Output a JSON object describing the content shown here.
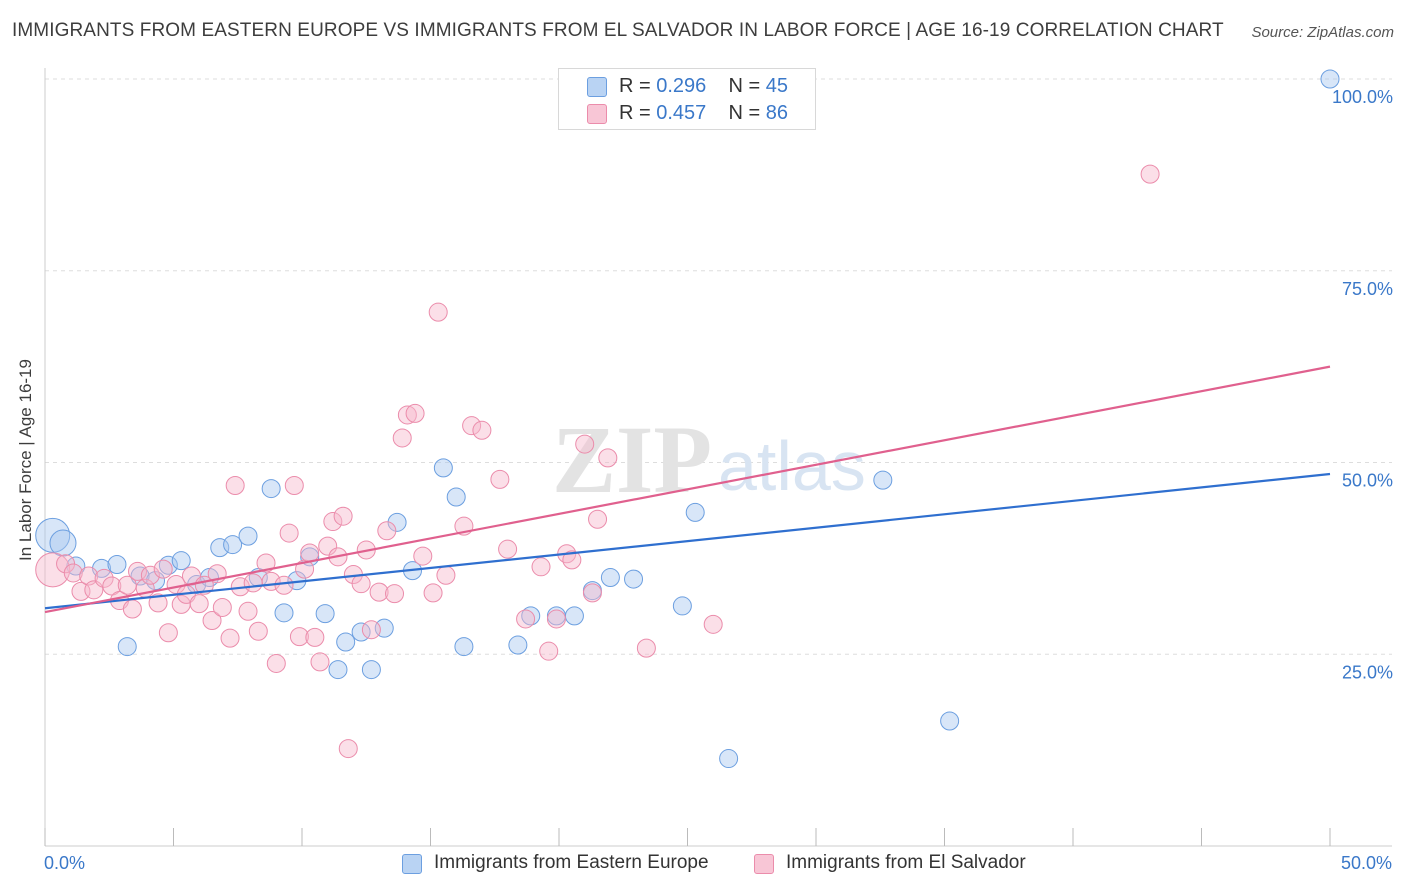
{
  "title": "IMMIGRANTS FROM EASTERN EUROPE VS IMMIGRANTS FROM EL SALVADOR IN LABOR FORCE | AGE 16-19 CORRELATION CHART",
  "source": "Source: ZipAtlas.com",
  "watermark": "ZIPatlas",
  "legend": {
    "r_label": "R =",
    "n_label": "N =",
    "series": [
      {
        "name": "Immigrants from Eastern Europe",
        "r": "0.296",
        "n": "45"
      },
      {
        "name": "Immigrants from El Salvador",
        "r": "0.457",
        "n": "86"
      }
    ]
  },
  "colors": {
    "blue_fill": "#a8c8f0",
    "blue_stroke": "#6c9fe0",
    "blue_line": "#2f6fcf",
    "pink_fill": "#f6b8cc",
    "pink_stroke": "#eb8cab",
    "pink_line": "#e0608e",
    "tick_text": "#3a78c9",
    "grid": "#dddddd"
  },
  "chart_data": {
    "type": "scatter",
    "title": "IMMIGRANTS FROM EASTERN EUROPE VS IMMIGRANTS FROM EL SALVADOR IN LABOR FORCE | AGE 16-19 CORRELATION CHART",
    "xlabel": "",
    "ylabel": "In Labor Force | Age 16-19",
    "xlim": [
      0,
      50
    ],
    "ylim": [
      0,
      100
    ],
    "x_tick_labels": [
      {
        "value": 0,
        "label": "0.0%"
      },
      {
        "value": 50,
        "label": "50.0%"
      }
    ],
    "y_tick_labels": [
      {
        "value": 25,
        "label": "25.0%"
      },
      {
        "value": 50,
        "label": "50.0%"
      },
      {
        "value": 75,
        "label": "75.0%"
      },
      {
        "value": 100,
        "label": "100.0%"
      }
    ],
    "series": [
      {
        "name": "Immigrants from Eastern Europe",
        "r": 0.296,
        "n": 45,
        "trend": {
          "x": [
            0,
            50
          ],
          "y": [
            31.0,
            48.5
          ]
        },
        "points": [
          {
            "x": 0.3,
            "y": 40.5,
            "big": 1
          },
          {
            "x": 0.7,
            "y": 39.5,
            "big": 0
          },
          {
            "x": 1.2,
            "y": 36.5
          },
          {
            "x": 2.2,
            "y": 36.2
          },
          {
            "x": 2.8,
            "y": 36.7
          },
          {
            "x": 3.2,
            "y": 26.0
          },
          {
            "x": 3.7,
            "y": 35.2
          },
          {
            "x": 4.3,
            "y": 34.6
          },
          {
            "x": 4.8,
            "y": 36.6
          },
          {
            "x": 5.3,
            "y": 37.2
          },
          {
            "x": 5.9,
            "y": 34.1
          },
          {
            "x": 6.4,
            "y": 35.0
          },
          {
            "x": 6.8,
            "y": 38.9
          },
          {
            "x": 7.3,
            "y": 39.3
          },
          {
            "x": 7.9,
            "y": 40.4
          },
          {
            "x": 8.3,
            "y": 35.0
          },
          {
            "x": 8.8,
            "y": 46.6
          },
          {
            "x": 9.3,
            "y": 30.4
          },
          {
            "x": 9.8,
            "y": 34.6
          },
          {
            "x": 10.3,
            "y": 37.7
          },
          {
            "x": 10.9,
            "y": 30.3
          },
          {
            "x": 11.4,
            "y": 23.0
          },
          {
            "x": 11.7,
            "y": 26.6
          },
          {
            "x": 12.3,
            "y": 27.9
          },
          {
            "x": 12.7,
            "y": 23.0
          },
          {
            "x": 13.2,
            "y": 28.4
          },
          {
            "x": 13.7,
            "y": 42.2
          },
          {
            "x": 14.3,
            "y": 35.9
          },
          {
            "x": 15.5,
            "y": 49.3
          },
          {
            "x": 16.0,
            "y": 45.5
          },
          {
            "x": 16.3,
            "y": 26.0
          },
          {
            "x": 18.4,
            "y": 26.2
          },
          {
            "x": 18.9,
            "y": 30.0
          },
          {
            "x": 19.9,
            "y": 30.0
          },
          {
            "x": 20.6,
            "y": 30.0
          },
          {
            "x": 21.3,
            "y": 33.3
          },
          {
            "x": 22.0,
            "y": 35.0
          },
          {
            "x": 22.9,
            "y": 34.8
          },
          {
            "x": 24.8,
            "y": 31.3
          },
          {
            "x": 25.3,
            "y": 43.5
          },
          {
            "x": 26.6,
            "y": 11.4
          },
          {
            "x": 32.6,
            "y": 47.7
          },
          {
            "x": 35.2,
            "y": 16.3
          },
          {
            "x": 50.0,
            "y": 100.0
          }
        ]
      },
      {
        "name": "Immigrants from El Salvador",
        "r": 0.457,
        "n": 86,
        "trend": {
          "x": [
            0,
            50
          ],
          "y": [
            30.5,
            62.5
          ]
        },
        "points": [
          {
            "x": 0.3,
            "y": 36.0,
            "big": 1
          },
          {
            "x": 0.8,
            "y": 36.8
          },
          {
            "x": 1.1,
            "y": 35.6
          },
          {
            "x": 1.4,
            "y": 33.2
          },
          {
            "x": 1.7,
            "y": 35.2
          },
          {
            "x": 1.9,
            "y": 33.4
          },
          {
            "x": 2.3,
            "y": 34.9
          },
          {
            "x": 2.6,
            "y": 33.9
          },
          {
            "x": 2.9,
            "y": 32.0
          },
          {
            "x": 3.2,
            "y": 34.0
          },
          {
            "x": 3.4,
            "y": 30.9
          },
          {
            "x": 3.6,
            "y": 35.8
          },
          {
            "x": 3.9,
            "y": 33.6
          },
          {
            "x": 4.1,
            "y": 35.3
          },
          {
            "x": 4.4,
            "y": 31.7
          },
          {
            "x": 4.6,
            "y": 36.1
          },
          {
            "x": 4.8,
            "y": 27.8
          },
          {
            "x": 5.1,
            "y": 34.1
          },
          {
            "x": 5.3,
            "y": 31.5
          },
          {
            "x": 5.5,
            "y": 32.8
          },
          {
            "x": 5.7,
            "y": 35.2
          },
          {
            "x": 6.0,
            "y": 31.6
          },
          {
            "x": 6.2,
            "y": 34.0
          },
          {
            "x": 6.5,
            "y": 29.4
          },
          {
            "x": 6.7,
            "y": 35.5
          },
          {
            "x": 6.9,
            "y": 31.1
          },
          {
            "x": 7.2,
            "y": 27.1
          },
          {
            "x": 7.4,
            "y": 47.0
          },
          {
            "x": 7.6,
            "y": 33.8
          },
          {
            "x": 7.9,
            "y": 30.6
          },
          {
            "x": 8.1,
            "y": 34.3
          },
          {
            "x": 8.3,
            "y": 28.0
          },
          {
            "x": 8.6,
            "y": 36.9
          },
          {
            "x": 8.8,
            "y": 34.5
          },
          {
            "x": 9.0,
            "y": 23.8
          },
          {
            "x": 9.3,
            "y": 34.0
          },
          {
            "x": 9.5,
            "y": 40.8
          },
          {
            "x": 9.7,
            "y": 47.0
          },
          {
            "x": 9.9,
            "y": 27.3
          },
          {
            "x": 10.1,
            "y": 36.1
          },
          {
            "x": 10.3,
            "y": 38.2
          },
          {
            "x": 10.5,
            "y": 27.2
          },
          {
            "x": 10.7,
            "y": 24.0
          },
          {
            "x": 11.0,
            "y": 39.1
          },
          {
            "x": 11.2,
            "y": 42.3
          },
          {
            "x": 11.4,
            "y": 37.7
          },
          {
            "x": 11.6,
            "y": 43.0
          },
          {
            "x": 11.8,
            "y": 12.7
          },
          {
            "x": 12.0,
            "y": 35.4
          },
          {
            "x": 12.3,
            "y": 34.2
          },
          {
            "x": 12.5,
            "y": 38.6
          },
          {
            "x": 12.7,
            "y": 28.2
          },
          {
            "x": 13.0,
            "y": 33.1
          },
          {
            "x": 13.3,
            "y": 41.1
          },
          {
            "x": 13.6,
            "y": 32.9
          },
          {
            "x": 13.9,
            "y": 53.2
          },
          {
            "x": 14.1,
            "y": 56.2
          },
          {
            "x": 14.4,
            "y": 56.4
          },
          {
            "x": 14.7,
            "y": 37.8
          },
          {
            "x": 15.1,
            "y": 33.0
          },
          {
            "x": 15.3,
            "y": 69.6
          },
          {
            "x": 15.6,
            "y": 35.3
          },
          {
            "x": 16.3,
            "y": 41.7
          },
          {
            "x": 16.6,
            "y": 54.8
          },
          {
            "x": 17.0,
            "y": 54.2
          },
          {
            "x": 17.7,
            "y": 47.8
          },
          {
            "x": 18.0,
            "y": 38.7
          },
          {
            "x": 18.7,
            "y": 29.6
          },
          {
            "x": 19.3,
            "y": 36.4
          },
          {
            "x": 19.6,
            "y": 25.4
          },
          {
            "x": 19.9,
            "y": 29.6
          },
          {
            "x": 20.3,
            "y": 38.1
          },
          {
            "x": 20.5,
            "y": 37.3
          },
          {
            "x": 21.0,
            "y": 52.4
          },
          {
            "x": 21.3,
            "y": 33.0
          },
          {
            "x": 21.5,
            "y": 42.6
          },
          {
            "x": 21.9,
            "y": 50.6
          },
          {
            "x": 23.4,
            "y": 25.8
          },
          {
            "x": 26.0,
            "y": 28.9
          },
          {
            "x": 43.0,
            "y": 87.6
          }
        ]
      }
    ]
  }
}
